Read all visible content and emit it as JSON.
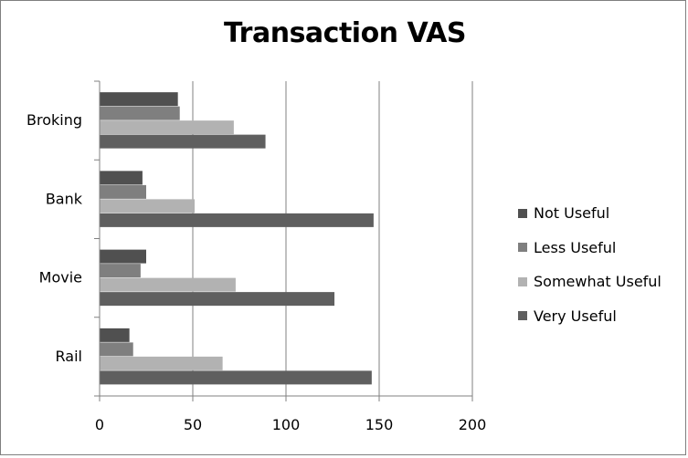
{
  "chart_data": {
    "type": "bar",
    "orientation": "horizontal",
    "title": "Transaction VAS",
    "categories": [
      "Broking",
      "Bank",
      "Movie",
      "Rail"
    ],
    "series": [
      {
        "name": "Not Useful",
        "values": [
          42,
          23,
          25,
          16
        ],
        "color": "#505050"
      },
      {
        "name": "Less Useful",
        "values": [
          43,
          25,
          22,
          18
        ],
        "color": "#7f7f7f"
      },
      {
        "name": "Somewhat Useful",
        "values": [
          72,
          51,
          73,
          66
        ],
        "color": "#b2b2b2"
      },
      {
        "name": "Very Useful",
        "values": [
          89,
          147,
          126,
          146
        ],
        "color": "#5f5f5f"
      }
    ],
    "xlim": [
      0,
      200
    ],
    "xticks": [
      0,
      50,
      100,
      150,
      200
    ],
    "xlabel": "",
    "ylabel": "",
    "grid": "vertical",
    "legend_position": "right"
  }
}
